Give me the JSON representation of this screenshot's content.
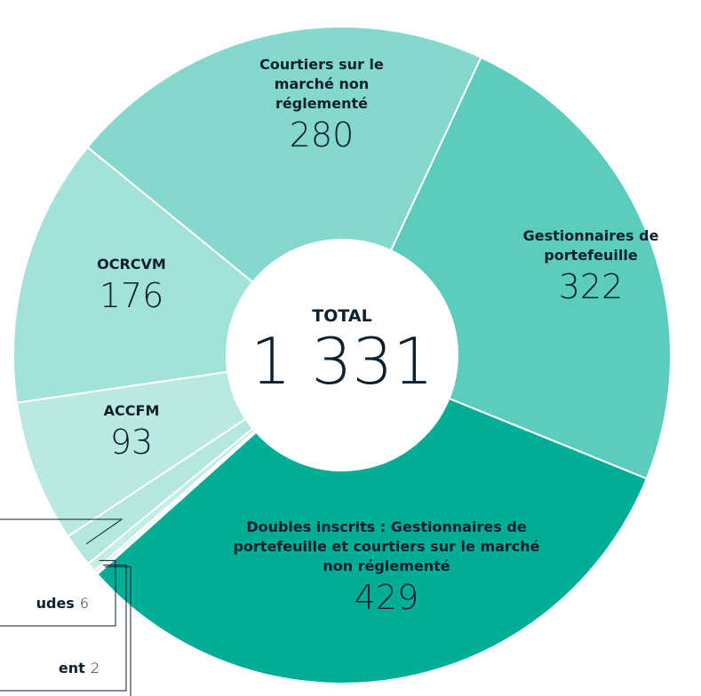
{
  "chart_data": {
    "type": "donut",
    "center_label": "TOTAL",
    "total": {
      "value": 1331,
      "label": "1 331"
    },
    "categories": [
      "Gestionnaires de portefeuille",
      "Doubles inscrits : Gestionnaires de portefeuille et courtiers sur le marché non réglementé",
      null,
      "ent",
      "udes",
      null,
      "ACCFM",
      "OCRCVM",
      "Courtiers sur le marché non réglementé"
    ],
    "values": [
      322,
      429,
      1,
      2,
      6,
      22,
      93,
      176,
      280
    ],
    "colors": [
      "#5ccdbd",
      "#00ad96",
      "#d8f3ee",
      "#cdefe9",
      "#c4ede6",
      "#b4e7df",
      "#b9e9e1",
      "#a3e2d8",
      "#85d9cc"
    ]
  }
}
